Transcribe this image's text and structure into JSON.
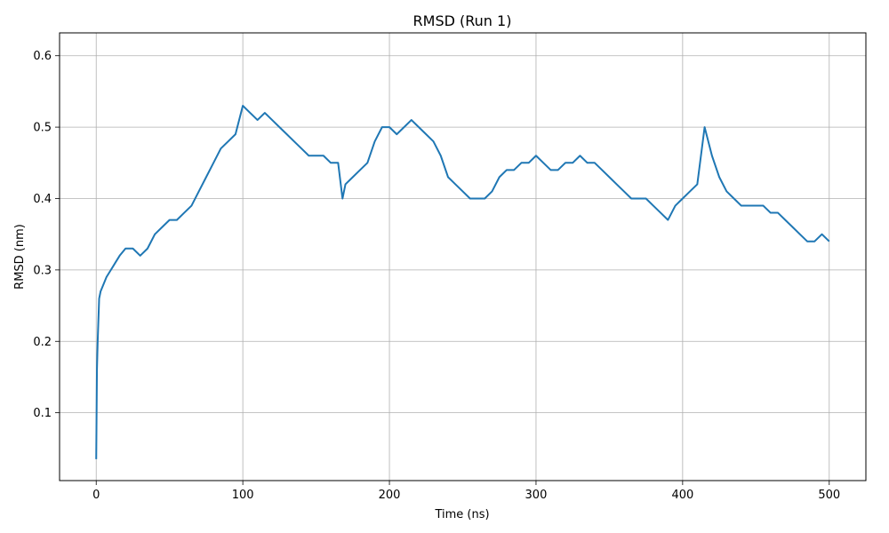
{
  "chart_data": {
    "type": "line",
    "title": "RMSD (Run 1)",
    "xlabel": "Time (ns)",
    "ylabel": "RMSD (nm)",
    "xlim": [
      -25,
      525
    ],
    "ylim": [
      0.005,
      0.632
    ],
    "xticks": [
      0,
      100,
      200,
      300,
      400,
      500
    ],
    "yticks": [
      0.1,
      0.2,
      0.3,
      0.4,
      0.5,
      0.6
    ],
    "grid": true,
    "line_color": "#1f77b4",
    "series": [
      {
        "x": [
          0,
          0.5,
          1,
          2,
          3,
          5,
          7,
          10,
          13,
          16,
          20,
          25,
          30,
          35,
          40,
          45,
          50,
          55,
          60,
          65,
          70,
          75,
          80,
          85,
          90,
          95,
          100,
          105,
          110,
          115,
          120,
          125,
          130,
          135,
          140,
          145,
          150,
          155,
          160,
          165,
          168,
          170,
          175,
          180,
          185,
          190,
          195,
          200,
          205,
          210,
          215,
          220,
          225,
          230,
          235,
          240,
          245,
          250,
          255,
          260,
          265,
          270,
          275,
          280,
          285,
          290,
          295,
          300,
          305,
          310,
          315,
          320,
          325,
          330,
          335,
          340,
          345,
          350,
          355,
          360,
          365,
          370,
          375,
          380,
          385,
          390,
          395,
          400,
          405,
          410,
          415,
          420,
          425,
          430,
          435,
          440,
          445,
          450,
          455,
          460,
          465,
          470,
          475,
          480,
          485,
          490,
          495,
          500
        ],
        "y": [
          0.035,
          0.16,
          0.2,
          0.26,
          0.27,
          0.28,
          0.29,
          0.3,
          0.31,
          0.32,
          0.33,
          0.33,
          0.32,
          0.33,
          0.35,
          0.36,
          0.37,
          0.37,
          0.38,
          0.39,
          0.41,
          0.43,
          0.45,
          0.47,
          0.48,
          0.49,
          0.53,
          0.52,
          0.51,
          0.52,
          0.51,
          0.5,
          0.49,
          0.48,
          0.47,
          0.46,
          0.46,
          0.46,
          0.45,
          0.45,
          0.4,
          0.42,
          0.43,
          0.44,
          0.45,
          0.48,
          0.5,
          0.5,
          0.49,
          0.5,
          0.51,
          0.5,
          0.49,
          0.48,
          0.46,
          0.43,
          0.42,
          0.41,
          0.4,
          0.4,
          0.4,
          0.41,
          0.43,
          0.44,
          0.44,
          0.45,
          0.45,
          0.46,
          0.45,
          0.44,
          0.44,
          0.45,
          0.45,
          0.46,
          0.45,
          0.45,
          0.44,
          0.43,
          0.42,
          0.41,
          0.4,
          0.4,
          0.4,
          0.39,
          0.38,
          0.37,
          0.39,
          0.4,
          0.41,
          0.42,
          0.5,
          0.46,
          0.43,
          0.41,
          0.4,
          0.39,
          0.39,
          0.39,
          0.39,
          0.38,
          0.38,
          0.37,
          0.36,
          0.35,
          0.34,
          0.34,
          0.35,
          0.34
        ]
      }
    ]
  }
}
